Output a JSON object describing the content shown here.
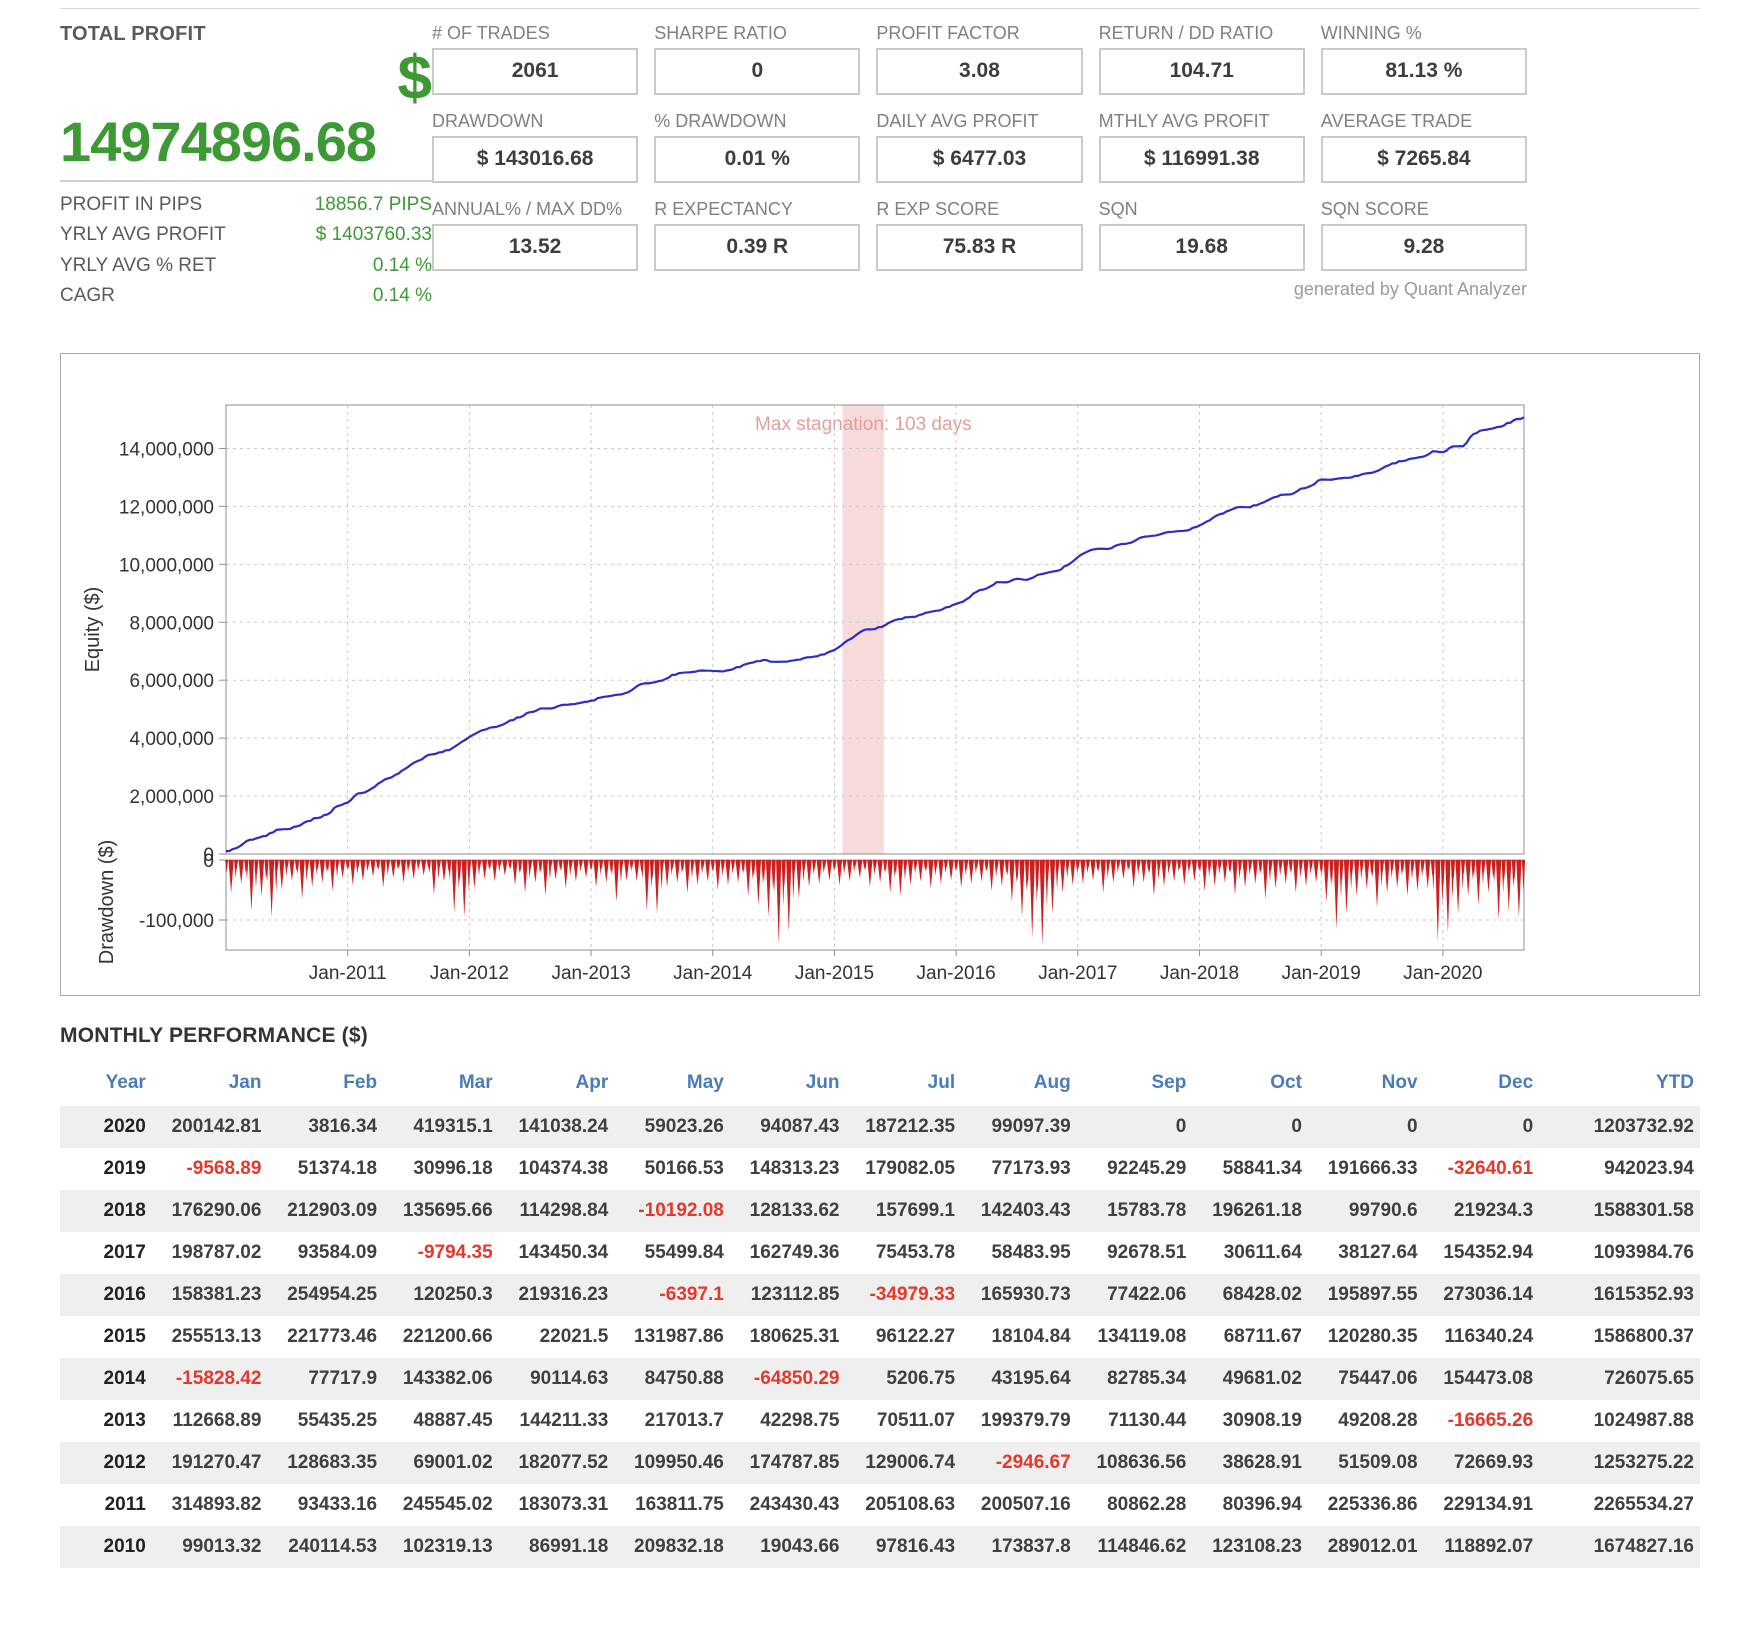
{
  "total_profit": {
    "label": "TOTAL PROFIT",
    "currency": "$",
    "value": "14974896.68",
    "rows": [
      {
        "label": "PROFIT IN PIPS",
        "value": "18856.7 PIPS"
      },
      {
        "label": "YRLY AVG PROFIT",
        "value": "$ 1403760.33"
      },
      {
        "label": "YRLY AVG % RET",
        "value": "0.14 %"
      },
      {
        "label": "CAGR",
        "value": "0.14 %"
      }
    ]
  },
  "stats": [
    {
      "label": "# OF TRADES",
      "value": "2061"
    },
    {
      "label": "SHARPE RATIO",
      "value": "0"
    },
    {
      "label": "PROFIT FACTOR",
      "value": "3.08"
    },
    {
      "label": "RETURN / DD RATIO",
      "value": "104.71"
    },
    {
      "label": "WINNING %",
      "value": "81.13 %"
    },
    {
      "label": "DRAWDOWN",
      "value": "$ 143016.68"
    },
    {
      "label": "% DRAWDOWN",
      "value": "0.01 %"
    },
    {
      "label": "DAILY AVG PROFIT",
      "value": "$ 6477.03"
    },
    {
      "label": "MTHLY AVG PROFIT",
      "value": "$ 116991.38"
    },
    {
      "label": "AVERAGE TRADE",
      "value": "$ 7265.84"
    },
    {
      "label": "ANNUAL% / MAX DD%",
      "value": "13.52"
    },
    {
      "label": "R EXPECTANCY",
      "value": "0.39 R"
    },
    {
      "label": "R EXP SCORE",
      "value": "75.83 R"
    },
    {
      "label": "SQN",
      "value": "19.68"
    },
    {
      "label": "SQN SCORE",
      "value": "9.28"
    }
  ],
  "credit": "generated by Quant Analyzer",
  "chart_data": [
    {
      "type": "line",
      "ylabel": "Equity ($)",
      "ylabel2": "Drawdown ($)",
      "annotation": "Max stagnation: 103 days",
      "x_tick_labels": [
        "Jan-2011",
        "Jan-2012",
        "Jan-2013",
        "Jan-2014",
        "Jan-2015",
        "Jan-2016",
        "Jan-2017",
        "Jan-2018",
        "Jan-2019",
        "Jan-2020"
      ],
      "y_ticks_equity": [
        0,
        2000000,
        4000000,
        6000000,
        8000000,
        10000000,
        12000000,
        14000000
      ],
      "y_axis_max": 15500000,
      "y_ticks_drawdown": [
        0,
        -100000
      ],
      "drawdown_axis_min": -150000,
      "n_months": 128,
      "start_year": 2010,
      "initial_equity": 100000,
      "stagnation_band_frac": [
        0.475,
        0.507
      ],
      "drawdown_monthly": [
        -55000,
        -40000,
        -85000,
        -60000,
        -95000,
        -50000,
        -35000,
        -65000,
        -45000,
        -38000,
        -52000,
        -30000,
        -42000,
        -35000,
        -28000,
        -46000,
        -30000,
        -38000,
        -32000,
        -26000,
        -58000,
        -36000,
        -88000,
        -95000,
        -48000,
        -32000,
        -36000,
        -26000,
        -42000,
        -55000,
        -38000,
        -60000,
        -33000,
        -47000,
        -36000,
        -30000,
        -45000,
        -38000,
        -70000,
        -35000,
        -35000,
        -85000,
        -90000,
        -45000,
        -38000,
        -55000,
        -42000,
        -36000,
        -50000,
        -42000,
        -38000,
        -60000,
        -75000,
        -95000,
        -140000,
        -120000,
        -65000,
        -45000,
        -40000,
        -35000,
        -42000,
        -36000,
        -30000,
        -45000,
        -38000,
        -55000,
        -60000,
        -42000,
        -36000,
        -48000,
        -40000,
        -34000,
        -46000,
        -40000,
        -36000,
        -52000,
        -44000,
        -70000,
        -95000,
        -130000,
        -143016,
        -90000,
        -55000,
        -42000,
        -40000,
        -34000,
        -55000,
        -38000,
        -32000,
        -46000,
        -38000,
        -60000,
        -44000,
        -36000,
        -42000,
        -35000,
        -52000,
        -44000,
        -38000,
        -58000,
        -46000,
        -40000,
        -65000,
        -48000,
        -40000,
        -55000,
        -44000,
        -38000,
        -70000,
        -115000,
        -90000,
        -60000,
        -48000,
        -80000,
        -55000,
        -46000,
        -60000,
        -52000,
        -48000,
        -135000,
        -120000,
        -90000,
        -60000,
        -75000,
        -55000,
        -100000,
        -85000,
        -95000
      ],
      "noise_seed": 7,
      "colors": {
        "equity_line": "#2d2dc4",
        "drawdown": "#cc1f1f",
        "band": "#f7dada",
        "annotation_text": "#e2a09c",
        "grid": "#c9c9c9",
        "axis": "#8f8f8f",
        "tick_text": "#333333"
      }
    },
    {
      "type": "table",
      "title": "MONTHLY PERFORMANCE ($)",
      "columns": [
        "Year",
        "Jan",
        "Feb",
        "Mar",
        "Apr",
        "May",
        "Jun",
        "Jul",
        "Aug",
        "Sep",
        "Oct",
        "Nov",
        "Dec",
        "YTD"
      ],
      "rows": [
        {
          "year": 2020,
          "values": [
            200142.81,
            3816.34,
            419315.1,
            141038.24,
            59023.26,
            94087.43,
            187212.35,
            99097.39,
            0,
            0,
            0,
            0,
            1203732.92
          ]
        },
        {
          "year": 2019,
          "values": [
            -9568.89,
            51374.18,
            30996.18,
            104374.38,
            50166.53,
            148313.23,
            179082.05,
            77173.93,
            92245.29,
            58841.34,
            191666.33,
            -32640.61,
            942023.94
          ]
        },
        {
          "year": 2018,
          "values": [
            176290.06,
            212903.09,
            135695.66,
            114298.84,
            -10192.08,
            128133.62,
            157699.1,
            142403.43,
            15783.78,
            196261.18,
            99790.6,
            219234.3,
            1588301.58
          ]
        },
        {
          "year": 2017,
          "values": [
            198787.02,
            93584.09,
            -9794.35,
            143450.34,
            55499.84,
            162749.36,
            75453.78,
            58483.95,
            92678.51,
            30611.64,
            38127.64,
            154352.94,
            1093984.76
          ]
        },
        {
          "year": 2016,
          "values": [
            158381.23,
            254954.25,
            120250.3,
            219316.23,
            -6397.1,
            123112.85,
            -34979.33,
            165930.73,
            77422.06,
            68428.02,
            195897.55,
            273036.14,
            1615352.93
          ]
        },
        {
          "year": 2015,
          "values": [
            255513.13,
            221773.46,
            221200.66,
            22021.5,
            131987.86,
            180625.31,
            96122.27,
            18104.84,
            134119.08,
            68711.67,
            120280.35,
            116340.24,
            1586800.37
          ]
        },
        {
          "year": 2014,
          "values": [
            -15828.42,
            77717.9,
            143382.06,
            90114.63,
            84750.88,
            -64850.29,
            5206.75,
            43195.64,
            82785.34,
            49681.02,
            75447.06,
            154473.08,
            726075.65
          ]
        },
        {
          "year": 2013,
          "values": [
            112668.89,
            55435.25,
            48887.45,
            144211.33,
            217013.7,
            42298.75,
            70511.07,
            199379.79,
            71130.44,
            30908.19,
            49208.28,
            -16665.26,
            1024987.88
          ]
        },
        {
          "year": 2012,
          "values": [
            191270.47,
            128683.35,
            69001.02,
            182077.52,
            109950.46,
            174787.85,
            129006.74,
            -2946.67,
            108636.56,
            38628.91,
            51509.08,
            72669.93,
            1253275.22
          ]
        },
        {
          "year": 2011,
          "values": [
            314893.82,
            93433.16,
            245545.02,
            183073.31,
            163811.75,
            243430.43,
            205108.63,
            200507.16,
            80862.28,
            80396.94,
            225336.86,
            229134.91,
            2265534.27
          ]
        },
        {
          "year": 2010,
          "values": [
            99013.32,
            240114.53,
            102319.13,
            86991.18,
            209832.18,
            19043.66,
            97816.43,
            173837.8,
            114846.62,
            123108.23,
            289012.01,
            118892.07,
            1674827.16
          ]
        }
      ]
    }
  ]
}
